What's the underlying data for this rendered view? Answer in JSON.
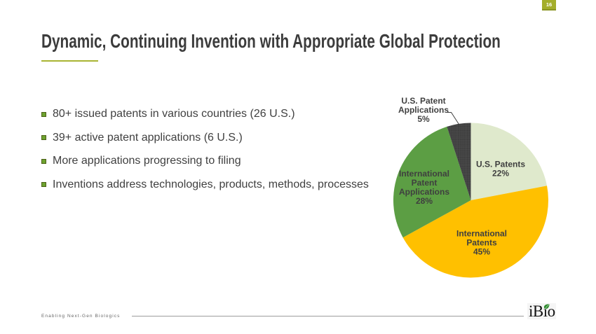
{
  "page": {
    "number": "16"
  },
  "title": {
    "text": "Dynamic, Continuing Invention with Appropriate Global Protection"
  },
  "bullets": [
    {
      "text": "80+ issued patents in various countries (26 U.S.)"
    },
    {
      "text": "39+ active patent applications (6 U.S.)"
    },
    {
      "text": "More applications progressing to filing"
    },
    {
      "text": "Inventions address technologies, products, methods, processes"
    }
  ],
  "chart_data": {
    "type": "pie",
    "start_angle_deg": 0,
    "direction": "clockwise",
    "slices": [
      {
        "label": "U.S. Patents",
        "value": 22,
        "color": "#dfe9cc",
        "label_lines": [
          "U.S. Patents",
          "22%"
        ],
        "label_position": "inside"
      },
      {
        "label": "International Patents",
        "value": 45,
        "color": "#ffc000",
        "label_lines": [
          "International",
          "Patents",
          "45%"
        ],
        "label_position": "inside"
      },
      {
        "label": "International Patent Applications",
        "value": 28,
        "color": "#5c9e44",
        "label_lines": [
          "International",
          "Patent",
          "Applications",
          "28%"
        ],
        "label_position": "inside"
      },
      {
        "label": "U.S. Patent Applications",
        "value": 5,
        "color": "#3f3f3f",
        "pattern": "grid",
        "pattern_line_color": "#5b5b5b",
        "label_lines": [
          "U.S. Patent",
          "Applications",
          "5%"
        ],
        "label_position": "outside"
      }
    ],
    "label_color": "#3f3f3f",
    "legend": "none",
    "title": ""
  },
  "footer": {
    "tagline": "Enabling Next-Gen Biologics",
    "logo_text": "iBio"
  },
  "colors": {
    "accent_olive": "#a4ae2b",
    "underline": "#a9b432",
    "bullet_square": "#6da32f",
    "title_text": "#3c3c3c",
    "body_text": "#404040",
    "leaf_green": "#2e8b2e"
  }
}
